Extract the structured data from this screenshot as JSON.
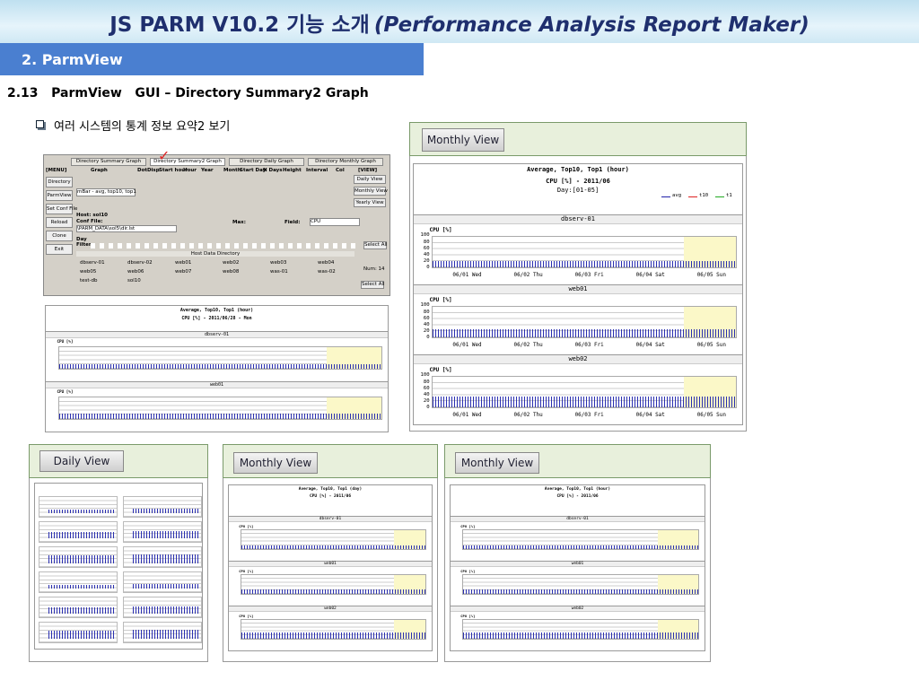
{
  "header": {
    "title": "JS PARM V10.2 기능 소개",
    "title_en": "(Performance Analysis Report Maker)"
  },
  "section": {
    "label": "2.  ParmView"
  },
  "subtitle": "2.13   ParmView   GUI – Directory Summary2 Graph",
  "bullet": "여러 시스템의 통계 정보 요약2 보기",
  "gui": {
    "tabs": [
      "Directory Summary Graph",
      "Directory Summary2 Graph",
      "Directory Daily Graph",
      "Directory Monthly Graph"
    ],
    "columns": [
      "[MENU]",
      "Graph",
      "DotDisp",
      "Start hour",
      "Hour",
      "Year",
      "Month",
      "Start Day",
      "N Days",
      "Height",
      "Interval",
      "Col",
      "[VIEW]"
    ],
    "menu_buttons": [
      "Directory",
      "ParmView",
      "Set Conf File",
      "Reload",
      "Clone",
      "Exit"
    ],
    "view_buttons": [
      "Daily View",
      "Monthly View",
      "Yearly View"
    ],
    "graph_select": "mBar - avg, top10, top1",
    "host_label": "Host: sol10",
    "conf_label": "Conf File:",
    "conf_path": "\\PARM_DATA\\sol5\\dir.lst",
    "field_label": "Field:",
    "field_value": "CPU",
    "max_label": "Max:",
    "day_label": "Day Filter",
    "select_all": "Select All",
    "host_dir": "Host Data Directory",
    "hosts": [
      "dbserv-01",
      "dbserv-02",
      "web01",
      "web02",
      "web03",
      "web04",
      "web05",
      "web06",
      "web07",
      "web08",
      "was-01",
      "was-02",
      "test-db",
      "sol10"
    ],
    "num_label": "Num: 14",
    "chart": {
      "title": "Average, Top10, Top1 (hour)",
      "subtitle": "CPU [%] - 2011/06/28 - Mon",
      "servers": [
        "dbserv-01",
        "web01"
      ],
      "metric": "CPU [%]"
    }
  },
  "right_panel": {
    "button": "Monthly View",
    "chart": {
      "title": "Average, Top10, Top1 (hour)",
      "subtitle": "CPU [%] - 2011/06",
      "range": "Day:[01-05]",
      "legend": [
        "avg",
        "t10",
        "t1"
      ],
      "servers": [
        "dbserv-01",
        "web01",
        "web02"
      ],
      "metric": "CPU [%]",
      "yticks": [
        100,
        80,
        60,
        40,
        20,
        0
      ],
      "dates": [
        "06/01 Wed",
        "06/02 Thu",
        "06/03 Fri",
        "06/04 Sat",
        "06/05 Sun"
      ]
    }
  },
  "bottom_panels": [
    {
      "button": "Daily View"
    },
    {
      "button": "Monthly View",
      "chart": {
        "title": "Average, Top10, Top1 (day)",
        "subtitle": "CPU [%] - 2011/06",
        "servers": [
          "dbserv-01",
          "web01",
          "web02"
        ],
        "metric": "CPU [%]"
      }
    },
    {
      "button": "Monthly View",
      "chart": {
        "title": "Average, Top10, Top1 (hour)",
        "subtitle": "CPU [%] - 2011/06",
        "servers": [
          "dbserv-01",
          "web01",
          "web02"
        ],
        "metric": "CPU [%]"
      }
    }
  ]
}
